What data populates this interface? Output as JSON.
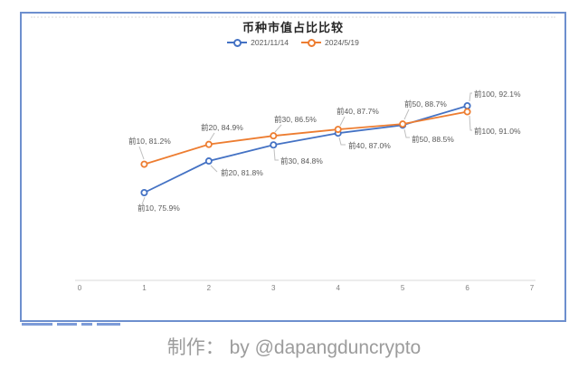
{
  "caption": "制作： by @dapangduncrypto",
  "chart_data": {
    "type": "line",
    "title": "币种市值占比比较",
    "categories": [
      "前10",
      "前20",
      "前30",
      "前40",
      "前50",
      "前100"
    ],
    "x_positions": [
      1,
      2,
      3,
      4,
      5,
      6
    ],
    "x_axis": {
      "tick_labels": [
        "0",
        "1",
        "2",
        "3",
        "4",
        "5",
        "6",
        "7"
      ],
      "range": [
        0,
        7
      ]
    },
    "y_axis": {
      "visible": false,
      "unit": "percent",
      "approx_range": [
        60,
        95
      ]
    },
    "grid": false,
    "legend_position": "top-center",
    "series": [
      {
        "name": "2021/11/14",
        "color": "#4472C4",
        "values": [
          75.9,
          81.8,
          84.8,
          87.0,
          88.5,
          92.1
        ],
        "point_labels": [
          "前10, 75.9%",
          "前20, 81.8%",
          "前30, 84.8%",
          "前40, 87.0%",
          "前50, 88.5%",
          "前100, 92.1%"
        ]
      },
      {
        "name": "2024/5/19",
        "color": "#ED7D31",
        "values": [
          81.2,
          84.9,
          86.5,
          87.7,
          88.7,
          91.0
        ],
        "point_labels": [
          "前10, 81.2%",
          "前20, 84.9%",
          "前30, 86.5%",
          "前40, 87.7%",
          "前50, 88.7%",
          "前100, 91.0%"
        ]
      }
    ],
    "colors": {
      "frame_border": "#6d8fce",
      "axis_line": "#d9d9d9",
      "tick_text": "#808080",
      "data_label": "#595959",
      "leader_line": "#bfbfbf"
    }
  }
}
